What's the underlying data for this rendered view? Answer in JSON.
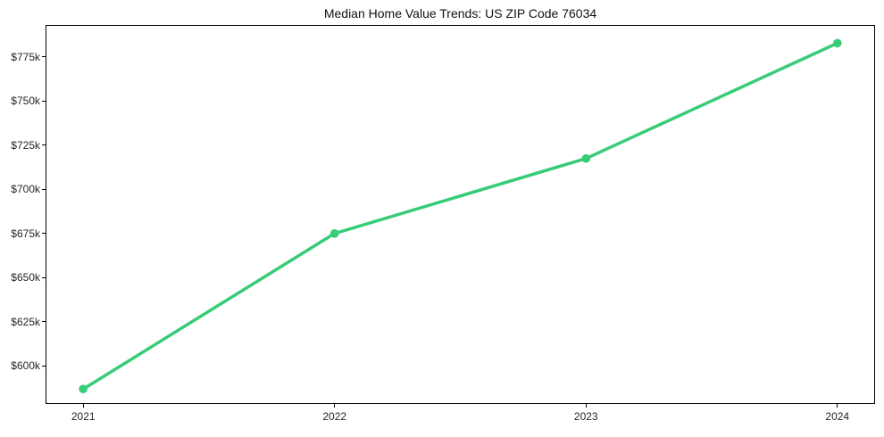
{
  "figure": {
    "background": "#ffffff",
    "spine_color": "#000000",
    "tick_color": "#000000",
    "text_color": "#262626",
    "title_color": "#111111"
  },
  "chart_data": {
    "type": "line",
    "title": "Median Home Value Trends: US ZIP Code 76034",
    "xlabel": "",
    "ylabel": "",
    "x": [
      2021,
      2022,
      2023,
      2024
    ],
    "x_tick_labels": [
      "2021",
      "2022",
      "2023",
      "2024"
    ],
    "series": [
      {
        "name": "median-home-value",
        "color": "#38cc77",
        "marker": "circle",
        "line_width": 3.5,
        "marker_radius": 4.8,
        "values": [
          586800,
          675000,
          717500,
          782900
        ]
      }
    ],
    "y_ticks": [
      600000,
      625000,
      650000,
      675000,
      700000,
      725000,
      750000,
      775000
    ],
    "y_tick_labels": [
      "$600k",
      "$625k",
      "$650k",
      "$675k",
      "$700k",
      "$725k",
      "$750k",
      "$775k"
    ],
    "xlim": [
      2020.85,
      2024.15
    ],
    "ylim": [
      578300,
      793200
    ],
    "grid": false,
    "legend": "none"
  }
}
